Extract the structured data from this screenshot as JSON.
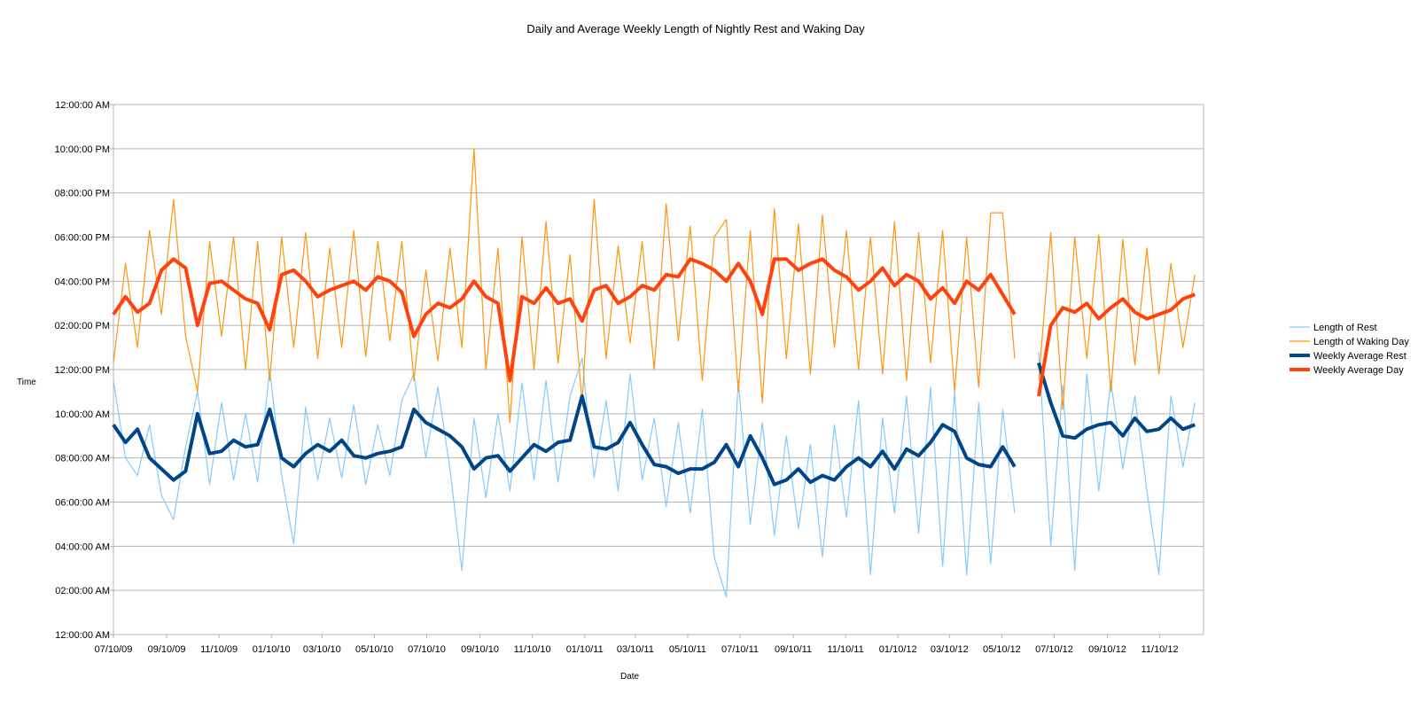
{
  "chart_data": {
    "type": "line",
    "title": "Daily and Average Weekly Length of Nightly Rest and Waking Day",
    "xlabel": "Date",
    "ylabel": "Time",
    "y_unit": "hours",
    "ylim": [
      0,
      24
    ],
    "y_ticks": [
      "12:00:00 AM",
      "02:00:00 AM",
      "04:00:00 AM",
      "06:00:00 AM",
      "08:00:00 AM",
      "10:00:00 AM",
      "12:00:00 PM",
      "02:00:00 PM",
      "04:00:00 PM",
      "06:00:00 PM",
      "08:00:00 PM",
      "10:00:00 PM",
      "12:00:00 AM"
    ],
    "x_ticks": [
      "07/10/09",
      "09/10/09",
      "11/10/09",
      "01/10/10",
      "03/10/10",
      "05/10/10",
      "07/10/10",
      "09/10/10",
      "11/10/10",
      "01/10/11",
      "03/10/11",
      "05/10/11",
      "07/10/11",
      "09/10/11",
      "11/10/11",
      "01/10/12",
      "03/10/12",
      "05/10/12",
      "07/10/12",
      "09/10/12",
      "11/10/12"
    ],
    "xlim": [
      "2009-07-10",
      "2012-12-31"
    ],
    "grid": true,
    "legend_position": "right",
    "x": [
      "2009-07-10",
      "2009-07-24",
      "2009-08-07",
      "2009-08-21",
      "2009-09-04",
      "2009-09-18",
      "2009-10-02",
      "2009-10-16",
      "2009-10-30",
      "2009-11-13",
      "2009-11-27",
      "2009-12-11",
      "2009-12-25",
      "2010-01-08",
      "2010-01-22",
      "2010-02-05",
      "2010-02-19",
      "2010-03-05",
      "2010-03-19",
      "2010-04-02",
      "2010-04-16",
      "2010-04-30",
      "2010-05-14",
      "2010-05-28",
      "2010-06-11",
      "2010-06-25",
      "2010-07-09",
      "2010-07-23",
      "2010-08-06",
      "2010-08-20",
      "2010-09-03",
      "2010-09-17",
      "2010-10-01",
      "2010-10-15",
      "2010-10-29",
      "2010-11-12",
      "2010-11-26",
      "2010-12-10",
      "2010-12-24",
      "2011-01-07",
      "2011-01-21",
      "2011-02-04",
      "2011-02-18",
      "2011-03-04",
      "2011-03-18",
      "2011-04-01",
      "2011-04-15",
      "2011-04-29",
      "2011-05-13",
      "2011-05-27",
      "2011-06-10",
      "2011-06-24",
      "2011-07-08",
      "2011-07-22",
      "2011-08-05",
      "2011-08-19",
      "2011-09-02",
      "2011-09-16",
      "2011-09-30",
      "2011-10-14",
      "2011-10-28",
      "2011-11-11",
      "2011-11-25",
      "2011-12-09",
      "2011-12-23",
      "2012-01-06",
      "2012-01-20",
      "2012-02-03",
      "2012-02-17",
      "2012-03-02",
      "2012-03-16",
      "2012-03-30",
      "2012-04-13",
      "2012-04-27",
      "2012-05-11",
      "2012-05-25",
      "2012-06-08",
      "2012-06-22",
      "2012-07-06",
      "2012-07-20",
      "2012-08-03",
      "2012-08-17",
      "2012-08-31",
      "2012-09-14",
      "2012-09-28",
      "2012-10-12",
      "2012-10-26",
      "2012-11-09",
      "2012-11-23",
      "2012-12-07",
      "2012-12-21"
    ],
    "series": [
      {
        "name": "Length of Rest",
        "color": "#83caff",
        "width": "thin",
        "values": [
          11.5,
          8.0,
          7.2,
          9.5,
          6.3,
          5.2,
          8.5,
          11.0,
          6.8,
          10.5,
          7.0,
          10.0,
          6.9,
          12.0,
          7.2,
          4.1,
          10.3,
          7.0,
          9.8,
          7.1,
          10.4,
          6.8,
          9.5,
          7.2,
          10.6,
          11.8,
          8.0,
          11.2,
          7.5,
          2.9,
          9.8,
          6.2,
          10.0,
          6.5,
          11.4,
          7.0,
          11.5,
          6.9,
          10.8,
          12.5,
          7.1,
          10.6,
          6.5,
          11.8,
          7.0,
          9.8,
          5.8,
          9.6,
          5.5,
          10.2,
          3.5,
          1.7,
          11.5,
          5.0,
          9.6,
          4.5,
          9.0,
          4.8,
          8.6,
          3.5,
          9.5,
          5.3,
          10.6,
          2.7,
          9.8,
          5.5,
          10.8,
          4.6,
          11.2,
          3.1,
          11.0,
          2.7,
          10.5,
          3.2,
          10.2,
          5.5,
          null,
          12.8,
          4.0,
          11.3,
          2.9,
          11.8,
          6.5,
          11.5,
          7.5,
          10.8,
          6.5,
          2.7,
          10.8,
          7.6,
          10.5
        ]
      },
      {
        "name": "Length of Waking Day",
        "color": "#ff950e",
        "width": "thin",
        "values": [
          12.3,
          16.8,
          13.0,
          18.3,
          14.5,
          19.7,
          13.5,
          11.0,
          17.8,
          13.5,
          18.0,
          12.0,
          17.8,
          11.5,
          18.0,
          13.0,
          18.2,
          12.5,
          17.5,
          13.0,
          18.3,
          12.6,
          17.8,
          13.3,
          17.8,
          11.5,
          16.5,
          12.4,
          17.5,
          13.0,
          22.0,
          12.0,
          17.5,
          9.6,
          18.0,
          12.0,
          18.7,
          12.3,
          17.2,
          10.5,
          19.7,
          12.5,
          17.6,
          13.2,
          17.8,
          12.0,
          19.5,
          13.3,
          18.5,
          11.5,
          18.0,
          18.8,
          11.0,
          18.3,
          10.5,
          19.3,
          12.5,
          18.6,
          11.8,
          19.0,
          13.0,
          18.3,
          12.0,
          18.0,
          11.8,
          18.7,
          11.5,
          18.2,
          12.3,
          18.3,
          11.0,
          18.0,
          11.2,
          19.1,
          19.1,
          12.5,
          null,
          11.5,
          18.2,
          10.2,
          18.0,
          12.5,
          18.1,
          11.0,
          17.9,
          12.2,
          17.5,
          11.8,
          16.8,
          13.0,
          16.3
        ]
      },
      {
        "name": "Weekly Average Rest",
        "color": "#004586",
        "width": "thick",
        "values": [
          9.5,
          8.7,
          9.3,
          8.0,
          7.5,
          7.0,
          7.4,
          10.0,
          8.2,
          8.3,
          8.8,
          8.5,
          8.6,
          10.2,
          8.0,
          7.6,
          8.2,
          8.6,
          8.3,
          8.8,
          8.1,
          8.0,
          8.2,
          8.3,
          8.5,
          10.2,
          9.6,
          9.3,
          9.0,
          8.5,
          7.5,
          8.0,
          8.1,
          7.4,
          8.0,
          8.6,
          8.3,
          8.7,
          8.8,
          10.8,
          8.5,
          8.4,
          8.7,
          9.6,
          8.6,
          7.7,
          7.6,
          7.3,
          7.5,
          7.5,
          7.8,
          8.6,
          7.6,
          9.0,
          8.0,
          6.8,
          7.0,
          7.5,
          6.9,
          7.2,
          7.0,
          7.6,
          8.0,
          7.6,
          8.3,
          7.5,
          8.4,
          8.1,
          8.7,
          9.5,
          9.2,
          8.0,
          7.7,
          7.6,
          8.5,
          7.6,
          null,
          12.3,
          10.5,
          9.0,
          8.9,
          9.3,
          9.5,
          9.6,
          9.0,
          9.8,
          9.2,
          9.3,
          9.8,
          9.3,
          9.5
        ]
      },
      {
        "name": "Weekly Average Day",
        "color": "#ff420e",
        "width": "thick",
        "values": [
          14.5,
          15.3,
          14.6,
          15.0,
          16.5,
          17.0,
          16.6,
          14.0,
          15.9,
          16.0,
          15.6,
          15.2,
          15.0,
          13.8,
          16.3,
          16.5,
          16.0,
          15.3,
          15.6,
          15.8,
          16.0,
          15.6,
          16.2,
          16.0,
          15.5,
          13.5,
          14.5,
          15.0,
          14.8,
          15.2,
          16.0,
          15.3,
          15.0,
          11.5,
          15.3,
          15.0,
          15.7,
          15.0,
          15.2,
          14.2,
          15.6,
          15.8,
          15.0,
          15.3,
          15.8,
          15.6,
          16.3,
          16.2,
          17.0,
          16.8,
          16.5,
          16.0,
          16.8,
          16.0,
          14.5,
          17.0,
          17.0,
          16.5,
          16.8,
          17.0,
          16.5,
          16.2,
          15.6,
          16.0,
          16.6,
          15.8,
          16.3,
          16.0,
          15.2,
          15.7,
          15.0,
          16.0,
          15.6,
          16.3,
          15.4,
          14.5,
          null,
          10.8,
          14.0,
          14.8,
          14.6,
          15.0,
          14.3,
          14.8,
          15.2,
          14.6,
          14.3,
          14.5,
          14.7,
          15.2,
          15.4
        ]
      }
    ]
  }
}
